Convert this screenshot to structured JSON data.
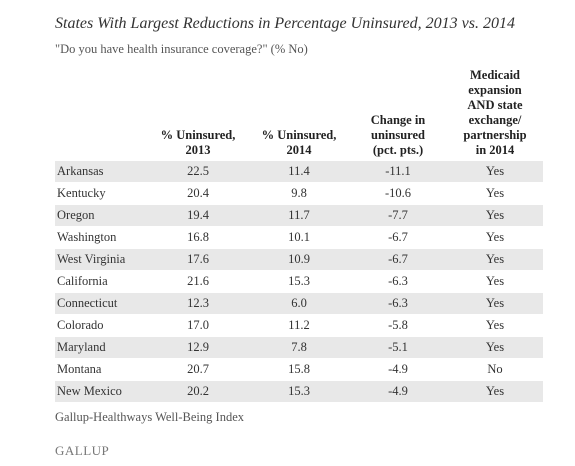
{
  "title": "States With Largest Reductions in Percentage Uninsured, 2013 vs. 2014",
  "subtitle": "\"Do you have health insurance coverage?\" (% No)",
  "table": {
    "headers": {
      "state": "",
      "uninsured_2013": [
        "% Uninsured,",
        "2013"
      ],
      "uninsured_2014": [
        "% Uninsured,",
        "2014"
      ],
      "change": [
        "Change in",
        "uninsured",
        "(pct. pts.)"
      ],
      "medicaid": [
        "Medicaid",
        "expansion",
        "AND state",
        "exchange/",
        "partnership",
        "in 2014"
      ]
    },
    "rows": [
      {
        "state": "Arkansas",
        "u2013": "22.5",
        "u2014": "11.4",
        "change": "-11.1",
        "medicaid": "Yes"
      },
      {
        "state": "Kentucky",
        "u2013": "20.4",
        "u2014": "9.8",
        "change": "-10.6",
        "medicaid": "Yes"
      },
      {
        "state": "Oregon",
        "u2013": "19.4",
        "u2014": "11.7",
        "change": "-7.7",
        "medicaid": "Yes"
      },
      {
        "state": "Washington",
        "u2013": "16.8",
        "u2014": "10.1",
        "change": "-6.7",
        "medicaid": "Yes"
      },
      {
        "state": "West Virginia",
        "u2013": "17.6",
        "u2014": "10.9",
        "change": "-6.7",
        "medicaid": "Yes"
      },
      {
        "state": "California",
        "u2013": "21.6",
        "u2014": "15.3",
        "change": "-6.3",
        "medicaid": "Yes"
      },
      {
        "state": "Connecticut",
        "u2013": "12.3",
        "u2014": "6.0",
        "change": "-6.3",
        "medicaid": "Yes"
      },
      {
        "state": "Colorado",
        "u2013": "17.0",
        "u2014": "11.2",
        "change": "-5.8",
        "medicaid": "Yes"
      },
      {
        "state": "Maryland",
        "u2013": "12.9",
        "u2014": "7.8",
        "change": "-5.1",
        "medicaid": "Yes"
      },
      {
        "state": "Montana",
        "u2013": "20.7",
        "u2014": "15.8",
        "change": "-4.9",
        "medicaid": "No"
      },
      {
        "state": "New Mexico",
        "u2013": "20.2",
        "u2014": "15.3",
        "change": "-4.9",
        "medicaid": "Yes"
      }
    ]
  },
  "footnote": "Gallup-Healthways Well-Being Index",
  "logo": "GALLUP",
  "colors": {
    "stripe": "#e8e8e8",
    "text": "#333333",
    "muted": "#555555"
  }
}
